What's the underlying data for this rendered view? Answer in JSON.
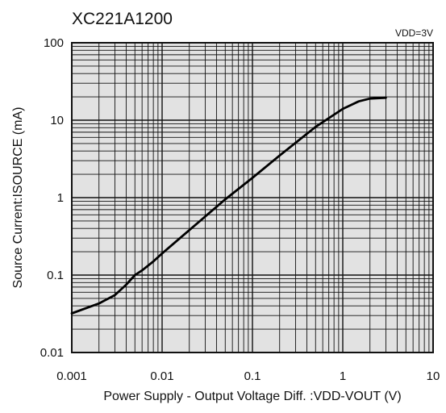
{
  "chart_data": {
    "type": "line",
    "title": "XC221A1200",
    "condition": "VDD=3V",
    "xlabel": "Power Supply - Output Voltage Diff. :VDD-VOUT (V)",
    "ylabel": "Source Current:ISOURCE (mA)",
    "x_scale": "log",
    "y_scale": "log",
    "xlim": [
      0.001,
      10
    ],
    "ylim": [
      0.01,
      100
    ],
    "x_ticks": [
      "0.001",
      "0.01",
      "0.1",
      "1",
      "10"
    ],
    "y_ticks": [
      "100",
      "10",
      "1",
      "0.1",
      "0.01"
    ],
    "grid": true,
    "series": [
      {
        "x": [
          0.001,
          0.0015,
          0.002,
          0.003,
          0.004,
          0.005,
          0.006,
          0.008,
          0.01,
          0.02,
          0.05,
          0.1,
          0.2,
          0.5,
          1,
          1.5,
          2,
          3
        ],
        "y": [
          0.032,
          0.038,
          0.043,
          0.055,
          0.075,
          0.1,
          0.115,
          0.15,
          0.19,
          0.38,
          0.95,
          1.8,
          3.5,
          8.2,
          14,
          17.5,
          19,
          19.5
        ]
      }
    ]
  }
}
